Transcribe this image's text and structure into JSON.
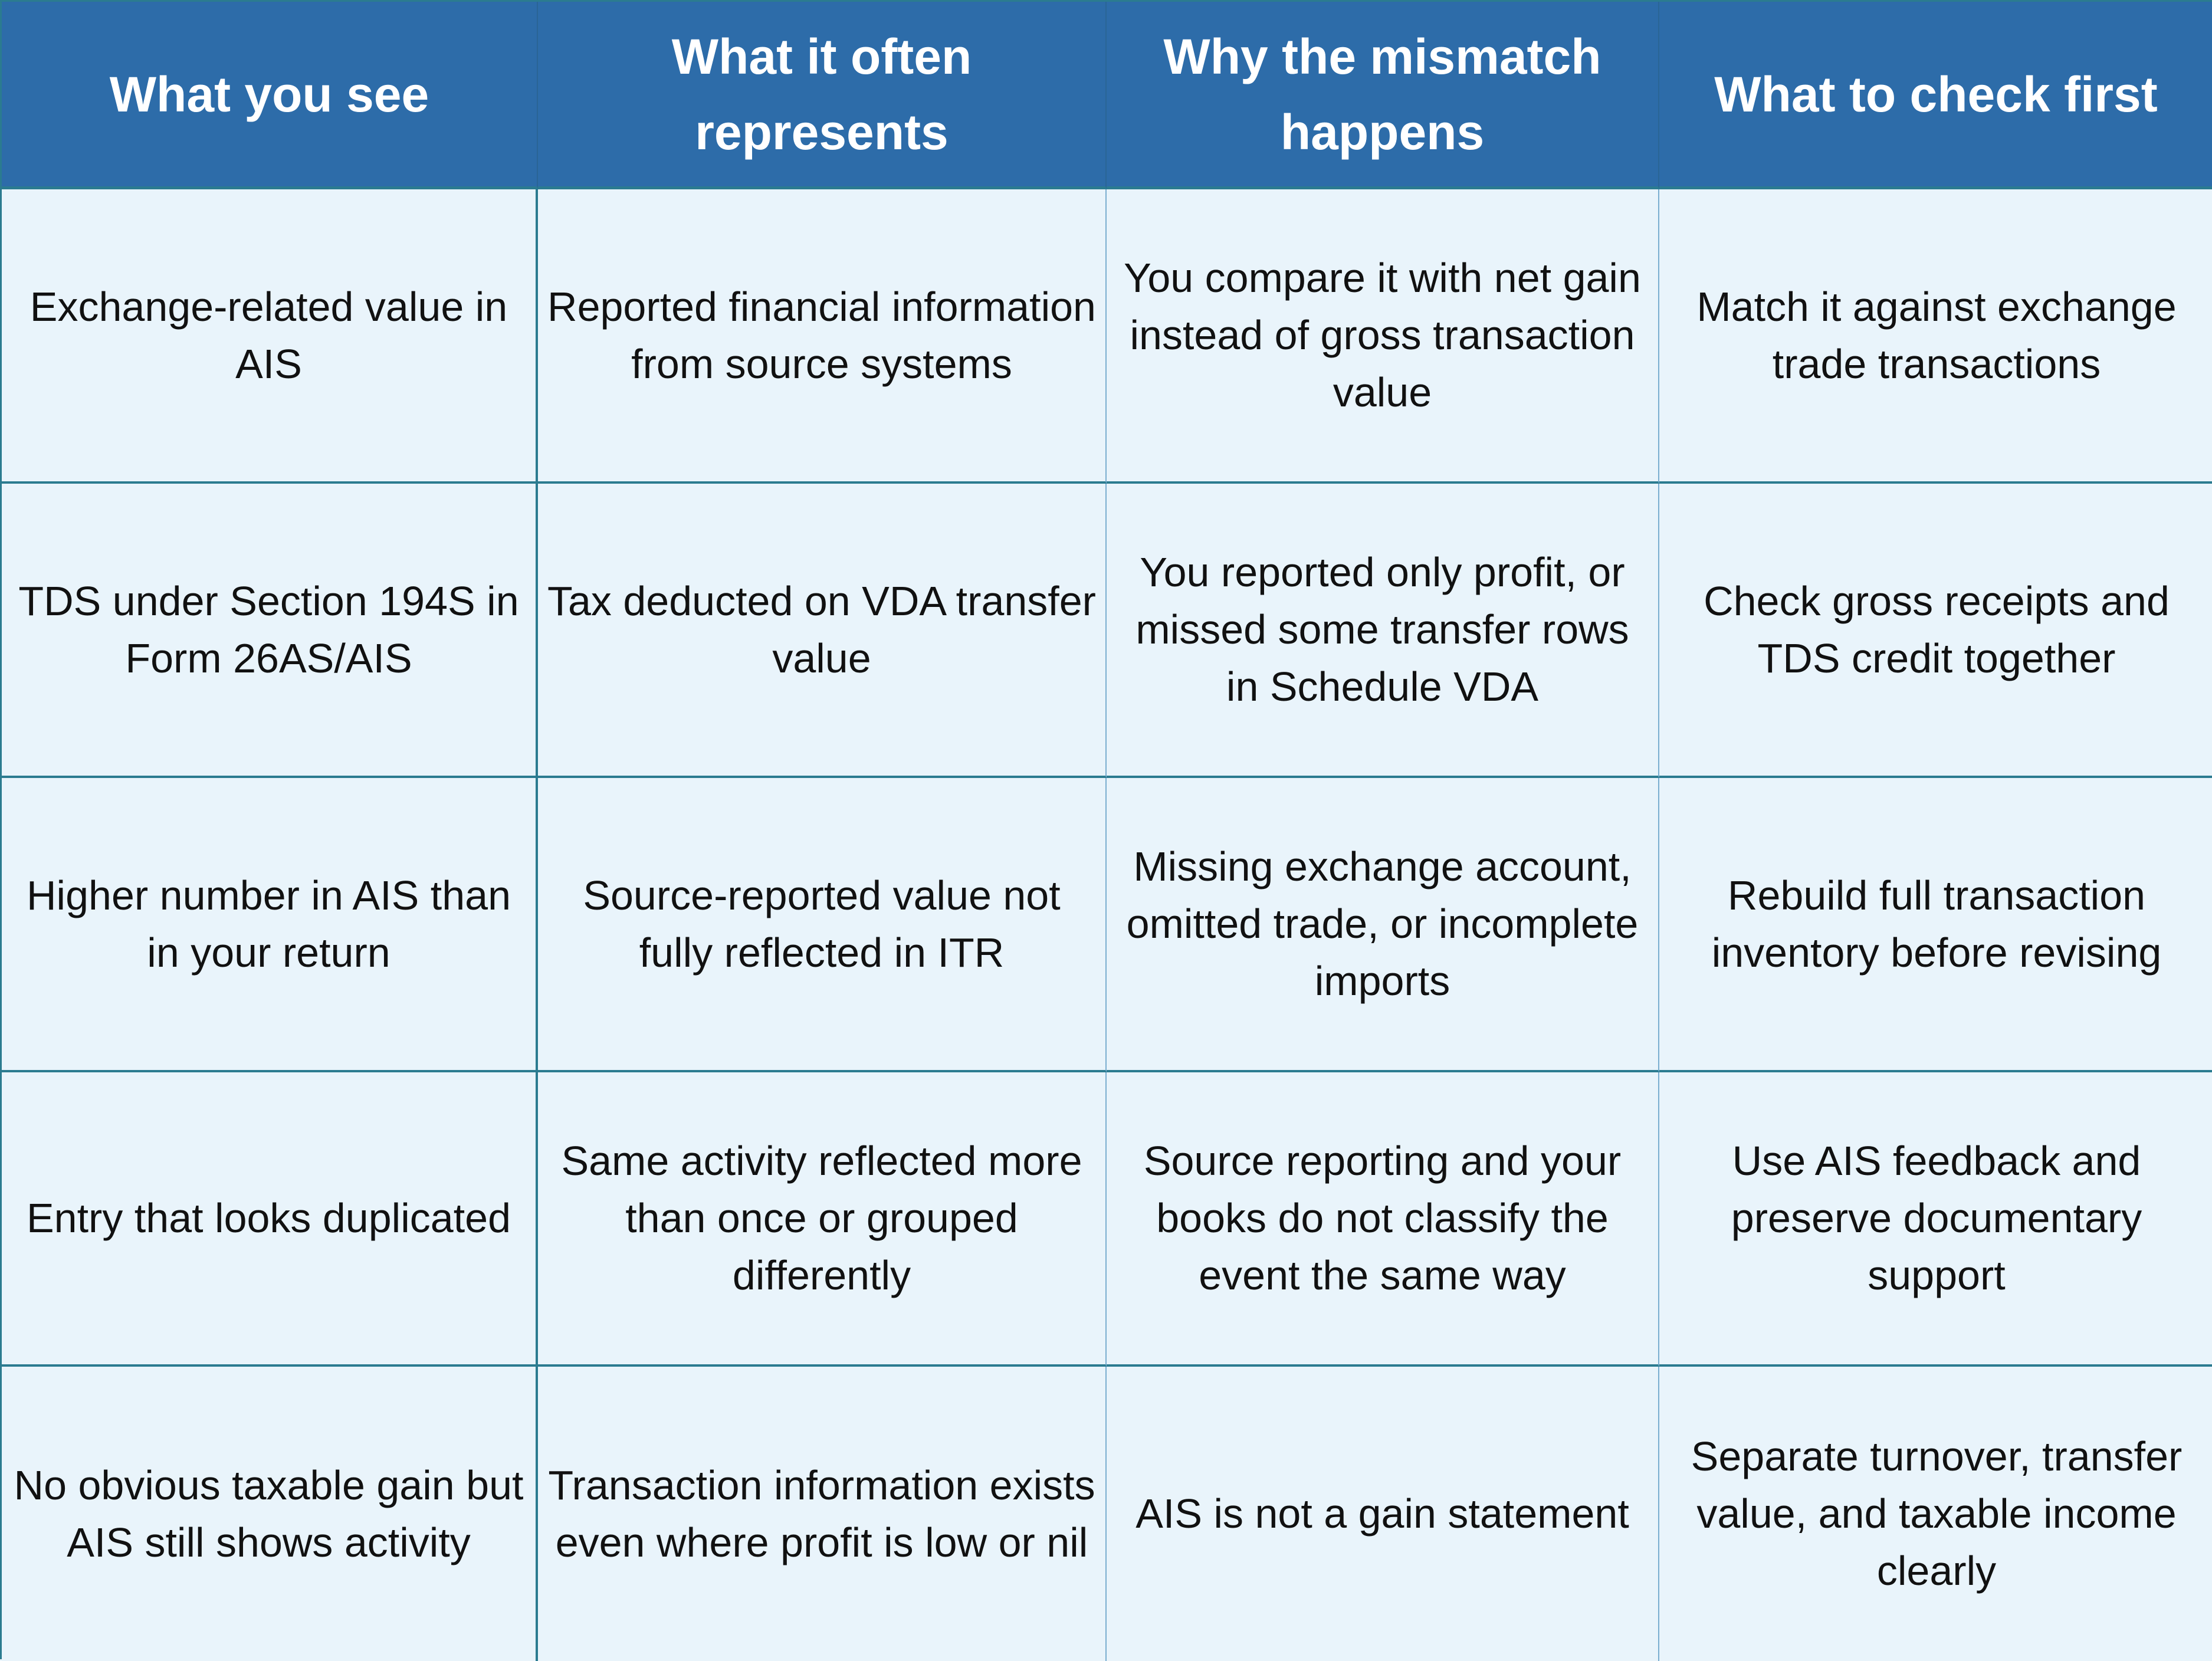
{
  "table": {
    "colors": {
      "header_bg": "#2d6ca9",
      "header_text": "#ffffff",
      "body_bg": "#e9f4fb",
      "body_text": "#111111",
      "grid_line": "#2b7b90"
    },
    "headers": [
      "What you see",
      "What it often represents",
      "Why the mismatch happens",
      "What to check first"
    ],
    "rows": [
      [
        "Exchange-related value in AIS",
        "Reported financial information from source systems",
        "You compare it with net gain instead of gross transaction value",
        "Match it against exchange trade transactions"
      ],
      [
        "TDS under Section 194S in Form 26AS/AIS",
        "Tax deducted on VDA transfer value",
        "You reported only profit, or missed some transfer rows in Schedule VDA",
        "Check gross receipts and TDS credit together"
      ],
      [
        "Higher number in AIS than in your return",
        "Source-reported value not fully reflected in ITR",
        "Missing exchange account, omitted trade, or incomplete imports",
        "Rebuild full transaction inventory before revising"
      ],
      [
        "Entry that looks duplicated",
        "Same activity reflected more than once or grouped differently",
        "Source reporting and your books do not classify the event the same way",
        "Use AIS feedback and preserve documentary support"
      ],
      [
        "No obvious taxable gain but AIS still shows activity",
        "Transaction information exists even where profit is low or nil",
        "AIS is not a gain statement",
        "Separate turnover, transfer value, and taxable income clearly"
      ]
    ]
  }
}
